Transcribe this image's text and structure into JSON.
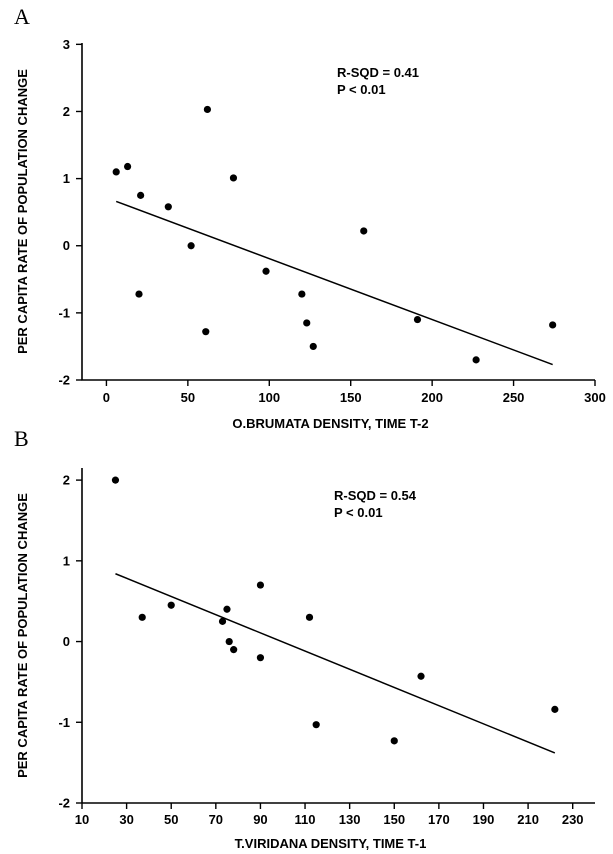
{
  "chart_data": [
    {
      "type": "scatter",
      "panel_label": "A",
      "title": "",
      "xlabel": "O.BRUMATA DENSITY, TIME T-2",
      "ylabel": "PER CAPITA RATE OF POPULATION CHANGE",
      "xlim": [
        -15,
        300
      ],
      "ylim": [
        -2,
        3
      ],
      "xticks": [
        0,
        50,
        100,
        150,
        200,
        250,
        300
      ],
      "yticks": [
        -2,
        -1,
        0,
        1,
        2,
        3
      ],
      "grid": false,
      "legend": "none",
      "annotations": [
        "R-SQD  = 0.41",
        "P < 0.01"
      ],
      "series": [
        {
          "points": [
            [
              6,
              1.1
            ],
            [
              13,
              1.18
            ],
            [
              20,
              -0.72
            ],
            [
              21,
              0.75
            ],
            [
              38,
              0.58
            ],
            [
              52,
              0.0
            ],
            [
              61,
              -1.28
            ],
            [
              62,
              2.03
            ],
            [
              78,
              1.01
            ],
            [
              98,
              -0.38
            ],
            [
              120,
              -0.72
            ],
            [
              123,
              -1.15
            ],
            [
              127,
              -1.5
            ],
            [
              158,
              0.22
            ],
            [
              191,
              -1.1
            ],
            [
              227,
              -1.7
            ],
            [
              274,
              -1.18
            ]
          ],
          "fit_line": [
            [
              6,
              0.66
            ],
            [
              274,
              -1.77
            ]
          ]
        }
      ]
    },
    {
      "type": "scatter",
      "panel_label": "B",
      "title": "",
      "xlabel": "T.VIRIDANA DENSITY, TIME T-1",
      "ylabel": "PER CAPITA RATE OF POPULATION CHANGE",
      "xlim": [
        10,
        240
      ],
      "ylim": [
        -2,
        2.15
      ],
      "xticks": [
        10,
        30,
        50,
        70,
        90,
        110,
        130,
        150,
        170,
        190,
        210,
        230
      ],
      "yticks": [
        -2,
        -1,
        0,
        1,
        2
      ],
      "grid": false,
      "legend": "none",
      "annotations": [
        "R-SQD = 0.54",
        "P < 0.01"
      ],
      "series": [
        {
          "points": [
            [
              25,
              2.0
            ],
            [
              37,
              0.3
            ],
            [
              50,
              0.45
            ],
            [
              73,
              0.25
            ],
            [
              75,
              0.4
            ],
            [
              76,
              0.0
            ],
            [
              78,
              -0.1
            ],
            [
              90,
              0.7
            ],
            [
              90,
              -0.2
            ],
            [
              112,
              0.3
            ],
            [
              115,
              -1.03
            ],
            [
              150,
              -1.23
            ],
            [
              162,
              -0.43
            ],
            [
              222,
              -0.84
            ]
          ],
          "fit_line": [
            [
              25,
              0.84
            ],
            [
              222,
              -1.38
            ]
          ]
        }
      ]
    }
  ]
}
